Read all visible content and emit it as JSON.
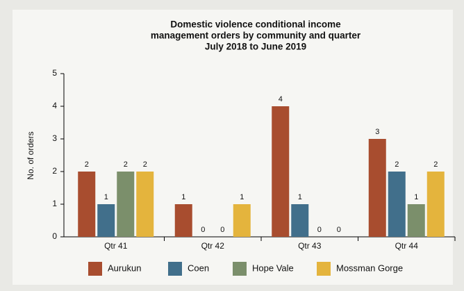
{
  "chart_data": {
    "type": "bar",
    "title": [
      "Domestic violence conditional  income",
      "management orders by community and quarter",
      "July 2018 to June 2019"
    ],
    "ylabel": "No. of orders",
    "categories": [
      "Qtr 41",
      "Qtr 42",
      "Qtr 43",
      "Qtr 44"
    ],
    "series": [
      {
        "name": "Aurukun",
        "color": "#a84d2f",
        "values": [
          2,
          1,
          4,
          3
        ]
      },
      {
        "name": "Coen",
        "color": "#416f8b",
        "values": [
          1,
          0,
          1,
          2
        ]
      },
      {
        "name": "Hope Vale",
        "color": "#7b8f6b",
        "values": [
          2,
          0,
          0,
          1
        ]
      },
      {
        "name": "Mossman Gorge",
        "color": "#e4b43d",
        "values": [
          2,
          1,
          0,
          2
        ]
      }
    ],
    "ylim": [
      0,
      5
    ],
    "yticks": [
      0,
      1,
      2,
      3,
      4,
      5
    ],
    "legend": "bottom"
  }
}
